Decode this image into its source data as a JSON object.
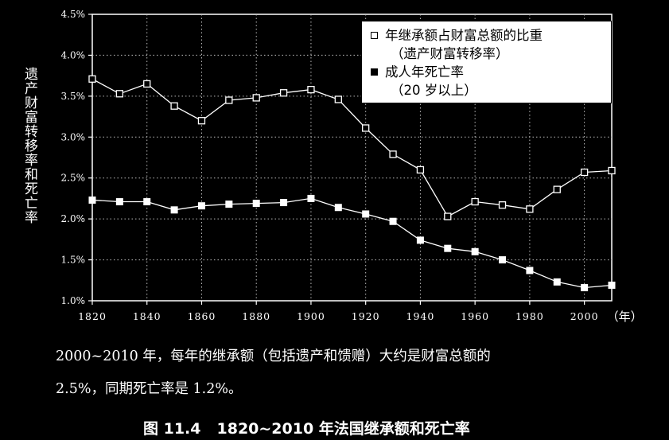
{
  "chart_data": {
    "type": "line",
    "xlabel_unit": "（年）",
    "ylabel": "遗产财富转移率和死亡率",
    "x_ticks": [
      1820,
      1840,
      1860,
      1880,
      1900,
      1920,
      1940,
      1960,
      1980,
      2000
    ],
    "y_ticks": [
      "1.0%",
      "1.5%",
      "2.0%",
      "2.5%",
      "3.0%",
      "3.5%",
      "4.0%",
      "4.5%"
    ],
    "xlim": [
      1820,
      2010
    ],
    "ylim": [
      1.0,
      4.5
    ],
    "grid": true,
    "x": [
      1820,
      1830,
      1840,
      1850,
      1860,
      1870,
      1880,
      1890,
      1900,
      1910,
      1920,
      1930,
      1940,
      1950,
      1960,
      1970,
      1980,
      1990,
      2000,
      2010
    ],
    "series": [
      {
        "name": "年继承额占财富总额的比重",
        "name_line2": "（遗产财富转移率）",
        "marker": "open-square",
        "values": [
          3.71,
          3.53,
          3.65,
          3.38,
          3.2,
          3.45,
          3.48,
          3.54,
          3.58,
          3.46,
          3.11,
          2.79,
          2.6,
          2.03,
          2.21,
          2.17,
          2.12,
          2.36,
          2.57,
          2.59
        ]
      },
      {
        "name": "成人年死亡率",
        "name_line2": "（20 岁以上）",
        "marker": "filled-square",
        "values": [
          2.23,
          2.21,
          2.21,
          2.11,
          2.16,
          2.18,
          2.19,
          2.2,
          2.25,
          2.14,
          2.06,
          1.97,
          1.74,
          1.64,
          1.6,
          1.5,
          1.37,
          1.23,
          1.16,
          1.19
        ]
      }
    ],
    "legend_position": "top-right"
  },
  "caption": {
    "line1": "2000~2010 年，每年的继承额（包括遗产和馈赠）大约是财富总额的",
    "line2": "2.5%，同期死亡率是 1.2%。"
  },
  "figure": {
    "number": "图 11.4",
    "title": "1820~2010 年法国继承额和死亡率"
  },
  "colors": {
    "background": "#000000",
    "foreground": "#ffffff",
    "grid": "#bbbbbb"
  }
}
